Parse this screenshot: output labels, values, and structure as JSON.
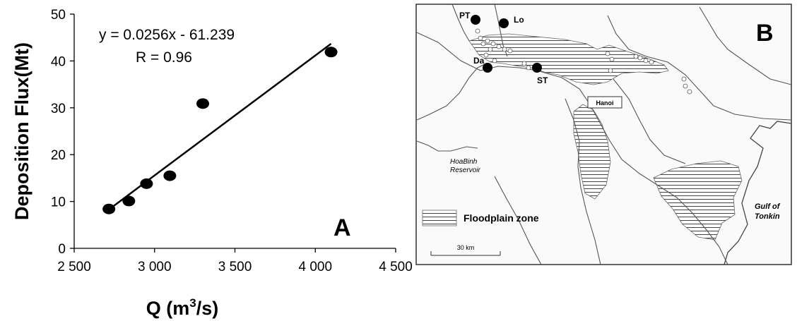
{
  "chart_data": [
    {
      "type": "scatter",
      "panel_label": "A",
      "x": [
        2716,
        2840,
        2950,
        3095,
        3300,
        4098
      ],
      "y": [
        8.4,
        10.1,
        13.8,
        15.5,
        30.9,
        41.9
      ],
      "xlim": [
        2500,
        4500
      ],
      "ylim": [
        0,
        50
      ],
      "xticks": [
        "2 500",
        "3 000",
        "3 500",
        "4 000",
        "4 500"
      ],
      "xtick_values": [
        2500,
        3000,
        3500,
        4000,
        4500
      ],
      "yticks": [
        "0",
        "10",
        "20",
        "30",
        "40",
        "50"
      ],
      "ytick_values": [
        0,
        10,
        20,
        30,
        40,
        50
      ],
      "xlabel_main": "Q (m",
      "xlabel_sup": "3",
      "xlabel_tail": "/s)",
      "ylabel": "Deposition Flux(Mt)",
      "trendline": {
        "slope": 0.0256,
        "intercept": -61.239,
        "x_range": [
          2716,
          4098
        ]
      },
      "equation": "y = 0.0256x - 61.239",
      "r_text": "R = 0.96",
      "grid": false,
      "marker_color": "#000000"
    }
  ],
  "map": {
    "panel_label": "B",
    "stations": [
      {
        "label": "PT"
      },
      {
        "label": "Lo"
      },
      {
        "label": "Da"
      },
      {
        "label": "ST"
      }
    ],
    "city": "Hanoi",
    "reservoir_line1": "HoaBinh",
    "reservoir_line2": "Reservoir",
    "gulf_line1": "Gulf of",
    "gulf_line2": "Tonkin",
    "legend_label": "Floodplain zone",
    "scale_label": "30 km"
  }
}
